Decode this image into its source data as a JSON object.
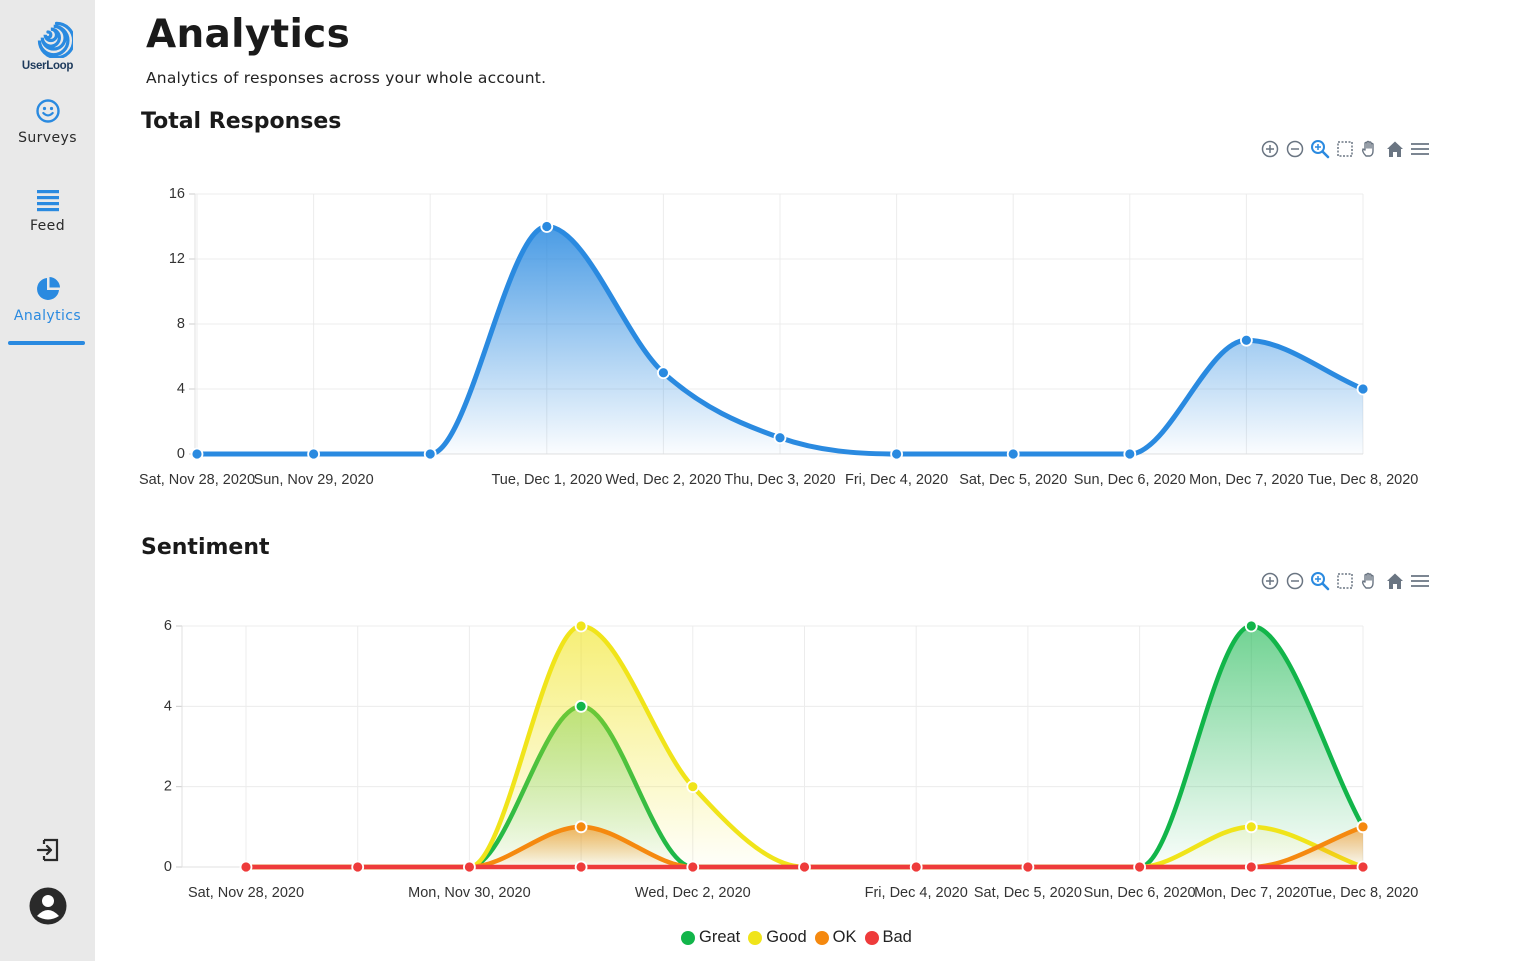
{
  "app": {
    "logo_text": "UserLoop",
    "accent": "#2a8ae0"
  },
  "sidebar": {
    "items": [
      {
        "label": "Surveys",
        "icon": "smiley-icon",
        "active": false
      },
      {
        "label": "Feed",
        "icon": "list-icon",
        "active": false
      },
      {
        "label": "Analytics",
        "icon": "pie-chart-icon",
        "active": true
      }
    ],
    "bottom": [
      {
        "icon": "logout-icon"
      },
      {
        "icon": "user-avatar-icon"
      }
    ]
  },
  "header": {
    "title": "Analytics",
    "subtitle": "Analytics of responses across your whole account."
  },
  "toolbar_icons": [
    "zoom-in-icon",
    "zoom-out-icon",
    "zoom-selection-icon",
    "select-box-icon",
    "pan-hand-icon",
    "home-reset-icon",
    "menu-icon"
  ],
  "chart_data": [
    {
      "type": "area",
      "title": "Total Responses",
      "xlabel": "",
      "ylabel": "",
      "ylim": [
        0,
        16
      ],
      "yticks": [
        0,
        4,
        8,
        12,
        16
      ],
      "grid": true,
      "smooth": true,
      "categories": [
        "Sat, Nov 28, 2020",
        "Sun, Nov 29, 2020",
        "Mon, Nov 30, 2020",
        "Tue, Dec 1, 2020",
        "Wed, Dec 2, 2020",
        "Thu, Dec 3, 2020",
        "Fri, Dec 4, 2020",
        "Sat, Dec 5, 2020",
        "Sun, Dec 6, 2020",
        "Mon, Dec 7, 2020",
        "Tue, Dec 8, 2020"
      ],
      "x_tick_labels": [
        "Sat, Nov 28, 2020",
        "Sun, Nov 29, 2020",
        "",
        "Tue, Dec 1, 2020",
        "Wed, Dec 2, 2020",
        "Thu, Dec 3, 2020",
        "Fri, Dec 4, 2020",
        "Sat, Dec 5, 2020",
        "Sun, Dec 6, 2020",
        "Mon, Dec 7, 2020",
        "Tue, Dec 8, 2020"
      ],
      "series": [
        {
          "color": "#2a8ae0",
          "values": [
            0,
            0,
            0,
            14,
            5,
            1,
            0,
            0,
            0,
            7,
            4
          ]
        }
      ]
    },
    {
      "type": "area",
      "title": "Sentiment",
      "xlabel": "",
      "ylabel": "",
      "ylim": [
        0,
        6
      ],
      "yticks": [
        0,
        2,
        4,
        6
      ],
      "grid": true,
      "smooth": true,
      "legend": "bottom-center",
      "categories": [
        "Sat, Nov 28, 2020",
        "Sun, Nov 29, 2020",
        "Mon, Nov 30, 2020",
        "Tue, Dec 1, 2020",
        "Wed, Dec 2, 2020",
        "Thu, Dec 3, 2020",
        "Fri, Dec 4, 2020",
        "Sat, Dec 5, 2020",
        "Sun, Dec 6, 2020",
        "Mon, Dec 7, 2020",
        "Tue, Dec 8, 2020"
      ],
      "x_tick_labels": [
        "Sat, Nov 28, 2020",
        "",
        "Mon, Nov 30, 2020",
        "",
        "Wed, Dec 2, 2020",
        "",
        "Fri, Dec 4, 2020",
        "Sat, Dec 5, 2020",
        "Sun, Dec 6, 2020",
        "Mon, Dec 7, 2020",
        "Tue, Dec 8, 2020"
      ],
      "series": [
        {
          "name": "Great",
          "color": "#12b54a",
          "values": [
            0,
            0,
            0,
            4,
            0,
            0,
            0,
            0,
            0,
            6,
            1
          ]
        },
        {
          "name": "Good",
          "color": "#f0e41a",
          "values": [
            0,
            0,
            0,
            6,
            2,
            0,
            0,
            0,
            0,
            1,
            0
          ]
        },
        {
          "name": "OK",
          "color": "#f5890f",
          "values": [
            0,
            0,
            0,
            1,
            0,
            0,
            0,
            0,
            0,
            0,
            1
          ]
        },
        {
          "name": "Bad",
          "color": "#ee3b3b",
          "values": [
            0,
            0,
            0,
            0,
            0,
            0,
            0,
            0,
            0,
            0,
            0
          ]
        }
      ]
    }
  ]
}
